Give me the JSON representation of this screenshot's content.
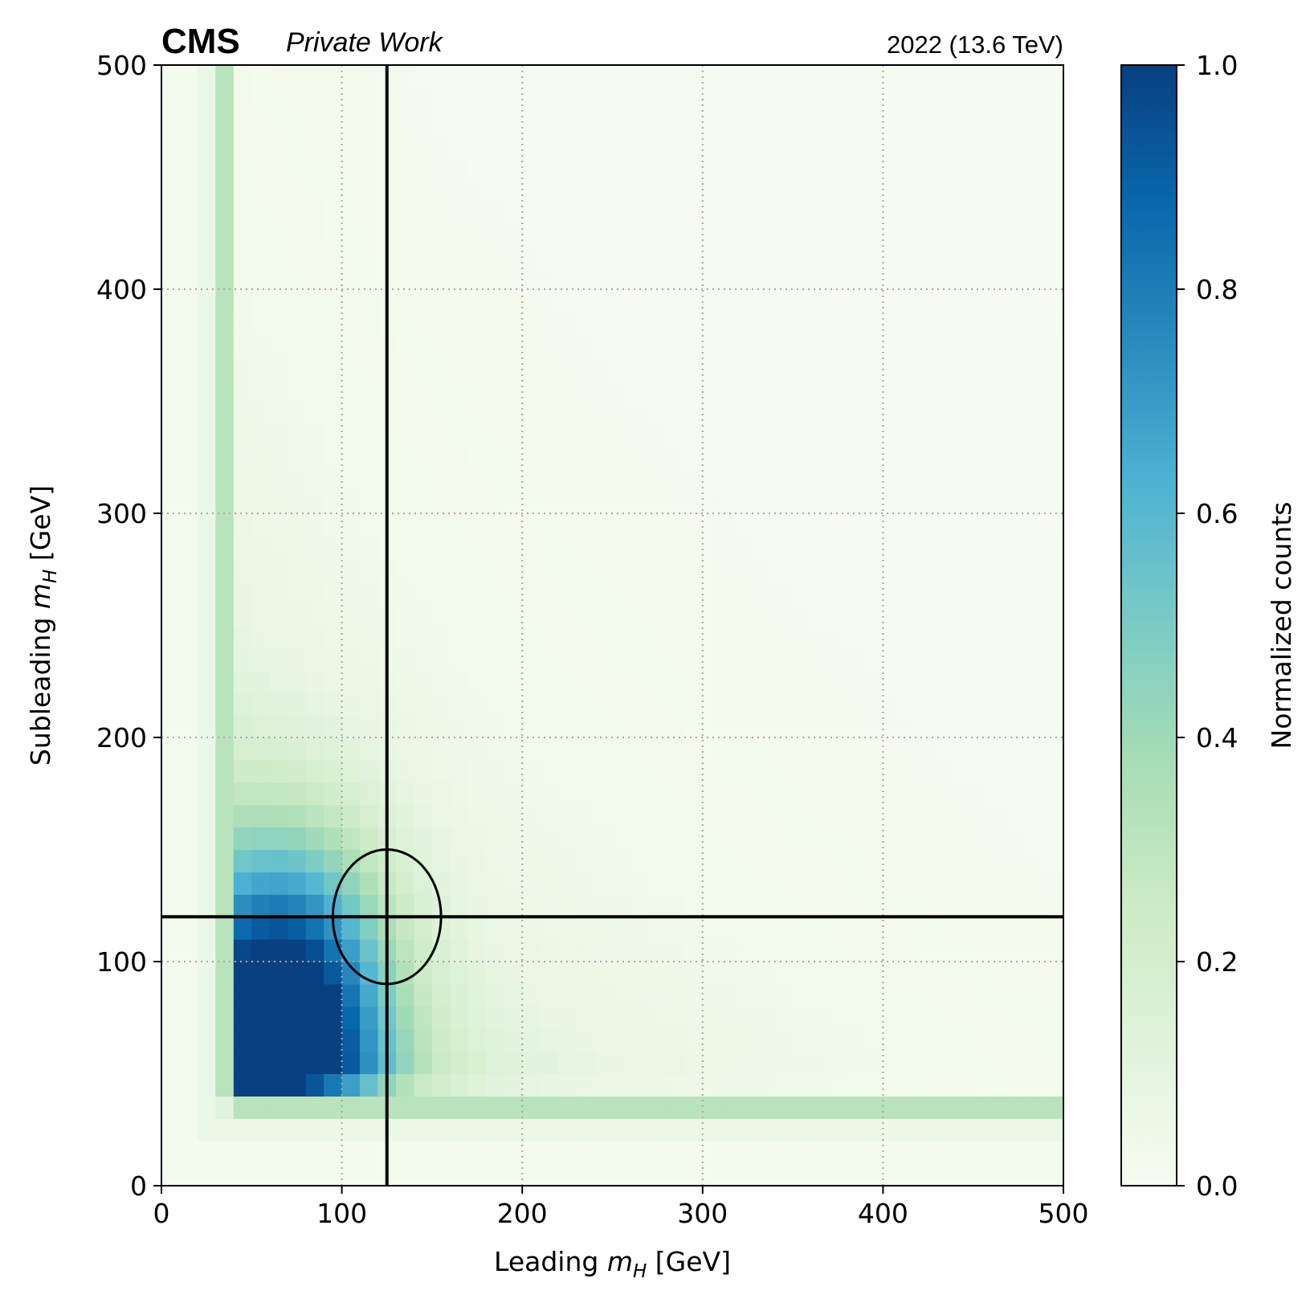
{
  "header": {
    "experiment": "CMS",
    "status": "Private Work",
    "lumi": "2022 (13.6 TeV)"
  },
  "chart_data": {
    "type": "heatmap",
    "xlabel": {
      "prefix": "Leading ",
      "var": "m",
      "sub": "H",
      "suffix": " [GeV]"
    },
    "ylabel": {
      "prefix": "Subleading ",
      "var": "m",
      "sub": "H",
      "suffix": " [GeV]"
    },
    "xlim": [
      0,
      500
    ],
    "ylim": [
      0,
      500
    ],
    "x_ticks": [
      "0",
      "100",
      "200",
      "300",
      "400",
      "500"
    ],
    "y_ticks": [
      "0",
      "100",
      "200",
      "300",
      "400",
      "500"
    ],
    "grid": true,
    "bins": 50,
    "colormap": "GnBu",
    "colorbar": {
      "label": "Normalized counts",
      "range": [
        0.0,
        1.0
      ],
      "ticks": [
        "0.0",
        "0.2",
        "0.4",
        "0.6",
        "0.8",
        "1.0"
      ],
      "stops": [
        "#f7fcf0",
        "#e0f3db",
        "#ccebc5",
        "#a8ddb5",
        "#7bccc4",
        "#4eb3d3",
        "#2b8cbe",
        "#0868ac",
        "#084081"
      ]
    },
    "peak": {
      "x": 70,
      "y": 70,
      "value": 1.0
    },
    "overlays": {
      "vertical_line_x": 125,
      "horizontal_line_y": 120,
      "ellipse": {
        "cx": 125,
        "cy": 120,
        "rx": 30,
        "ry": 30
      }
    }
  }
}
